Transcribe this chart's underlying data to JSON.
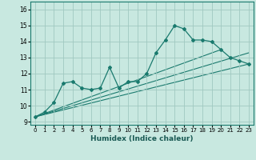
{
  "title": "",
  "xlabel": "Humidex (Indice chaleur)",
  "xlim": [
    -0.5,
    23.5
  ],
  "ylim": [
    8.8,
    16.5
  ],
  "yticks": [
    9,
    10,
    11,
    12,
    13,
    14,
    15,
    16
  ],
  "xticks": [
    0,
    1,
    2,
    3,
    4,
    5,
    6,
    7,
    8,
    9,
    10,
    11,
    12,
    13,
    14,
    15,
    16,
    17,
    18,
    19,
    20,
    21,
    22,
    23
  ],
  "line_color": "#1a7a6e",
  "bg_color": "#c8e8e0",
  "grid_color": "#a0c8c0",
  "series": [
    [
      0,
      9.3
    ],
    [
      1,
      9.6
    ],
    [
      2,
      10.2
    ],
    [
      3,
      11.4
    ],
    [
      4,
      11.5
    ],
    [
      5,
      11.1
    ],
    [
      6,
      11.0
    ],
    [
      7,
      11.1
    ],
    [
      8,
      12.4
    ],
    [
      9,
      11.1
    ],
    [
      10,
      11.5
    ],
    [
      11,
      11.5
    ],
    [
      12,
      12.0
    ],
    [
      13,
      13.3
    ],
    [
      14,
      14.1
    ],
    [
      15,
      15.0
    ],
    [
      16,
      14.8
    ],
    [
      17,
      14.1
    ],
    [
      18,
      14.1
    ],
    [
      19,
      14.0
    ],
    [
      20,
      13.5
    ],
    [
      21,
      13.0
    ],
    [
      22,
      12.8
    ],
    [
      23,
      12.6
    ]
  ],
  "reg_lines": [
    {
      "x": [
        0,
        23
      ],
      "y": [
        9.3,
        12.6
      ]
    },
    {
      "x": [
        0,
        23
      ],
      "y": [
        9.3,
        13.3
      ]
    },
    {
      "x": [
        0,
        20
      ],
      "y": [
        9.3,
        13.5
      ]
    }
  ]
}
